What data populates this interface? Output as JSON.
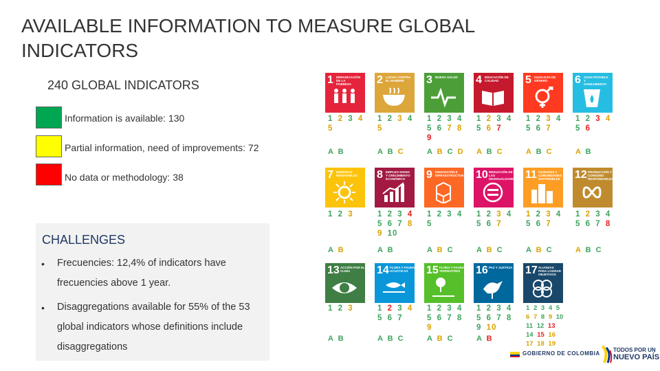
{
  "title": "AVAILABLE INFORMATION TO MEASURE GLOBAL INDICATORS",
  "subtitle": "240 GLOBAL INDICATORS",
  "legend": [
    {
      "color": "#00a651",
      "text": "Information is available: 130"
    },
    {
      "color": "#ffff00",
      "text": "Partial information, need of improvements: 72"
    },
    {
      "color": "#ff0000",
      "text": "No data or methodology: 38"
    }
  ],
  "challenges": {
    "title": "CHALLENGES",
    "bullets": [
      "Frecuencies: 12,4% of indicators have frecuencies above 1 year.",
      "Disaggregations available for 55% of the 53 global indicators whose definitions include disaggregations"
    ],
    "bullet_mark": "•"
  },
  "goals": [
    {
      "n": "1",
      "label": "Erradicación de la pobreza",
      "color": "#e5243b",
      "icon": "people-icon"
    },
    {
      "n": "2",
      "label": "Lucha contra el hambre",
      "color": "#dda63a",
      "icon": "bowl-icon"
    },
    {
      "n": "3",
      "label": "Buena salud",
      "color": "#4c9f38",
      "icon": "heartbeat-icon"
    },
    {
      "n": "4",
      "label": "Educación de calidad",
      "color": "#c5192d",
      "icon": "book-icon"
    },
    {
      "n": "5",
      "label": "Igualdad de género",
      "color": "#ff3a21",
      "icon": "gender-icon"
    },
    {
      "n": "6",
      "label": "Agua potable y saneamiento",
      "color": "#26bde2",
      "icon": "water-icon"
    },
    {
      "n": "7",
      "label": "Energías renovables",
      "color": "#fcc30b",
      "icon": "sun-icon"
    },
    {
      "n": "8",
      "label": "Empleo digno y crecimiento económico",
      "color": "#a21942",
      "icon": "growth-chart-icon"
    },
    {
      "n": "9",
      "label": "Innovación e infraestructuras",
      "color": "#fd6925",
      "icon": "cubes-icon"
    },
    {
      "n": "10",
      "label": "Reducción de las desigualdades",
      "color": "#dd1367",
      "icon": "equal-icon"
    },
    {
      "n": "11",
      "label": "Ciudades y comunidades sostenibles",
      "color": "#fd9d24",
      "icon": "city-icon"
    },
    {
      "n": "12",
      "label": "Producción y consumo responsables",
      "color": "#bf8b2e",
      "icon": "infinity-icon"
    },
    {
      "n": "13",
      "label": "Acción por el clima",
      "color": "#3f7e44",
      "icon": "eye-globe-icon"
    },
    {
      "n": "14",
      "label": "Flora y fauna acuáticas",
      "color": "#0a97d9",
      "icon": "fish-icon"
    },
    {
      "n": "15",
      "label": "Flora y fauna terrestres",
      "color": "#56c02b",
      "icon": "tree-icon"
    },
    {
      "n": "16",
      "label": "Paz y justicia",
      "color": "#00689d",
      "icon": "dove-icon"
    },
    {
      "n": "17",
      "label": "Alianzas para lograr objetivos",
      "color": "#19486a",
      "icon": "rings-icon"
    }
  ],
  "indicators": [
    {
      "nums": [
        [
          "1",
          "g"
        ],
        [
          "2",
          "y"
        ],
        [
          "3",
          "g"
        ],
        [
          "4",
          "y"
        ],
        [
          "5",
          "y"
        ]
      ],
      "letters": [
        [
          "A",
          "g"
        ],
        [
          "B",
          "g"
        ]
      ]
    },
    {
      "nums": [
        [
          "1",
          "g"
        ],
        [
          "2",
          "g"
        ],
        [
          "3",
          "y"
        ],
        [
          "4",
          "g"
        ],
        [
          "5",
          "y"
        ]
      ],
      "letters": [
        [
          "A",
          "g"
        ],
        [
          "B",
          "g"
        ],
        [
          "C",
          "y"
        ]
      ]
    },
    {
      "nums": [
        [
          "1",
          "g"
        ],
        [
          "2",
          "g"
        ],
        [
          "3",
          "g"
        ],
        [
          "4",
          "g"
        ],
        [
          "5",
          "g"
        ],
        [
          "6",
          "g"
        ],
        [
          "7",
          "y"
        ],
        [
          "8",
          "y"
        ],
        [
          "9",
          "r"
        ]
      ],
      "letters": [
        [
          "A",
          "g"
        ],
        [
          "B",
          "y"
        ],
        [
          "C",
          "g"
        ],
        [
          "D",
          "y"
        ]
      ]
    },
    {
      "nums": [
        [
          "1",
          "g"
        ],
        [
          "2",
          "y"
        ],
        [
          "3",
          "g"
        ],
        [
          "4",
          "g"
        ],
        [
          "5",
          "g"
        ],
        [
          "6",
          "y"
        ],
        [
          "7",
          "r"
        ]
      ],
      "letters": [
        [
          "A",
          "y"
        ],
        [
          "B",
          "g"
        ],
        [
          "C",
          "y"
        ]
      ]
    },
    {
      "nums": [
        [
          "1",
          "g"
        ],
        [
          "2",
          "g"
        ],
        [
          "3",
          "y"
        ],
        [
          "4",
          "g"
        ],
        [
          "5",
          "g"
        ],
        [
          "6",
          "g"
        ],
        [
          "7",
          "y"
        ]
      ],
      "letters": [
        [
          "A",
          "y"
        ],
        [
          "B",
          "g"
        ],
        [
          "C",
          "y"
        ]
      ]
    },
    {
      "nums": [
        [
          "1",
          "g"
        ],
        [
          "2",
          "g"
        ],
        [
          "3",
          "r"
        ],
        [
          "4",
          "y"
        ],
        [
          "5",
          "g"
        ],
        [
          "6",
          "r"
        ]
      ],
      "letters": [
        [
          "A",
          "y"
        ],
        [
          "B",
          "g"
        ]
      ]
    },
    {
      "nums": [
        [
          "1",
          "g"
        ],
        [
          "2",
          "g"
        ],
        [
          "3",
          "y"
        ]
      ],
      "letters": [
        [
          "A",
          "g"
        ],
        [
          "B",
          "y"
        ]
      ]
    },
    {
      "nums": [
        [
          "1",
          "g"
        ],
        [
          "2",
          "g"
        ],
        [
          "3",
          "g"
        ],
        [
          "4",
          "r"
        ],
        [
          "5",
          "g"
        ],
        [
          "6",
          "g"
        ],
        [
          "7",
          "g"
        ],
        [
          "8",
          "y"
        ],
        [
          "9",
          "y"
        ],
        [
          "10",
          "g"
        ]
      ],
      "letters": [
        [
          "A",
          "g"
        ],
        [
          "B",
          "g"
        ]
      ]
    },
    {
      "nums": [
        [
          "1",
          "g"
        ],
        [
          "2",
          "g"
        ],
        [
          "3",
          "g"
        ],
        [
          "4",
          "g"
        ],
        [
          "5",
          "g"
        ]
      ],
      "letters": [
        [
          "A",
          "g"
        ],
        [
          "B",
          "y"
        ],
        [
          "C",
          "g"
        ]
      ]
    },
    {
      "nums": [
        [
          "1",
          "g"
        ],
        [
          "2",
          "g"
        ],
        [
          "3",
          "y"
        ],
        [
          "4",
          "g"
        ],
        [
          "5",
          "g"
        ],
        [
          "6",
          "g"
        ],
        [
          "7",
          "y"
        ]
      ],
      "letters": [
        [
          "A",
          "g"
        ],
        [
          "B",
          "y"
        ],
        [
          "C",
          "g"
        ]
      ]
    },
    {
      "nums": [
        [
          "1",
          "y"
        ],
        [
          "2",
          "g"
        ],
        [
          "3",
          "y"
        ],
        [
          "4",
          "g"
        ],
        [
          "5",
          "g"
        ],
        [
          "6",
          "g"
        ],
        [
          "7",
          "y"
        ]
      ],
      "letters": [
        [
          "A",
          "g"
        ],
        [
          "B",
          "y"
        ],
        [
          "C",
          "g"
        ]
      ]
    },
    {
      "nums": [
        [
          "1",
          "g"
        ],
        [
          "2",
          "y"
        ],
        [
          "3",
          "g"
        ],
        [
          "4",
          "g"
        ],
        [
          "5",
          "g"
        ],
        [
          "6",
          "g"
        ],
        [
          "7",
          "g"
        ],
        [
          "8",
          "r"
        ]
      ],
      "letters": [
        [
          "A",
          "y"
        ],
        [
          "B",
          "g"
        ],
        [
          "C",
          "g"
        ]
      ]
    },
    {
      "nums": [
        [
          "1",
          "g"
        ],
        [
          "2",
          "g"
        ],
        [
          "3",
          "y"
        ]
      ],
      "letters": [
        [
          "A",
          "g"
        ],
        [
          "B",
          "g"
        ]
      ]
    },
    {
      "nums": [
        [
          "1",
          "g"
        ],
        [
          "2",
          "r"
        ],
        [
          "3",
          "g"
        ],
        [
          "4",
          "y"
        ],
        [
          "5",
          "g"
        ],
        [
          "6",
          "g"
        ],
        [
          "7",
          "g"
        ]
      ],
      "letters": [
        [
          "A",
          "g"
        ],
        [
          "B",
          "g"
        ],
        [
          "C",
          "g"
        ]
      ]
    },
    {
      "nums": [
        [
          "1",
          "g"
        ],
        [
          "2",
          "g"
        ],
        [
          "3",
          "g"
        ],
        [
          "4",
          "g"
        ],
        [
          "5",
          "g"
        ],
        [
          "6",
          "g"
        ],
        [
          "7",
          "g"
        ],
        [
          "8",
          "g"
        ],
        [
          "9",
          "y"
        ]
      ],
      "letters": [
        [
          "A",
          "g"
        ],
        [
          "B",
          "y"
        ],
        [
          "C",
          "g"
        ]
      ]
    },
    {
      "nums": [
        [
          "1",
          "g"
        ],
        [
          "2",
          "g"
        ],
        [
          "3",
          "g"
        ],
        [
          "4",
          "g"
        ],
        [
          "5",
          "g"
        ],
        [
          "6",
          "g"
        ],
        [
          "7",
          "g"
        ],
        [
          "8",
          "g"
        ],
        [
          "9",
          "g"
        ],
        [
          "10",
          "y"
        ]
      ],
      "letters": [
        [
          "A",
          "g"
        ],
        [
          "B",
          "r"
        ]
      ]
    },
    {
      "nums": [
        [
          "1",
          "g"
        ],
        [
          "2",
          "g"
        ],
        [
          "3",
          "g"
        ],
        [
          "4",
          "g"
        ],
        [
          "5",
          "g"
        ],
        [
          "6",
          "y"
        ],
        [
          "7",
          "y"
        ],
        [
          "8",
          "g"
        ],
        [
          "9",
          "y"
        ],
        [
          "10",
          "g"
        ],
        [
          "11",
          "g"
        ],
        [
          "12",
          "g"
        ],
        [
          "13",
          "r"
        ],
        [
          "14",
          "g"
        ],
        [
          "15",
          "r"
        ],
        [
          "16",
          "y"
        ],
        [
          "17",
          "y"
        ],
        [
          "18",
          "y"
        ],
        [
          "19",
          "y"
        ]
      ],
      "letters": []
    }
  ],
  "footer": {
    "gov": "GOBIERNO DE COLOMBIA",
    "logo_lines": [
      "TODOS POR UN",
      "NUEVO PAÍS"
    ]
  }
}
